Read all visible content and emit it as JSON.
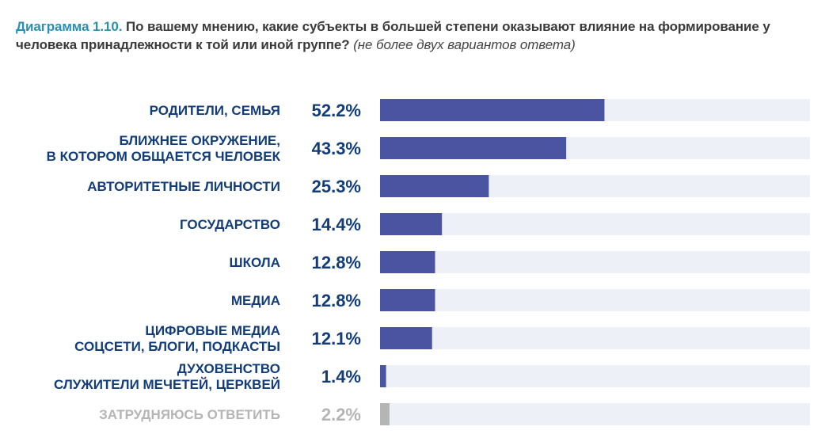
{
  "header": {
    "label": "Диаграмма 1.10.",
    "question": "По вашему мнению, какие субъекты в большей степени оказывают влияние на формирование у человека принадлежности к той или иной группе?",
    "note": "(не более двух вариантов ответа)"
  },
  "colors": {
    "bar": "#4a54a0",
    "bar_muted": "#b5b5b5",
    "track": "#eef0f8",
    "category_text": "#123d7a",
    "muted_text": "#b5b5b5",
    "header_label": "#2a8fb3"
  },
  "chart_data": {
    "type": "bar",
    "orientation": "horizontal",
    "categories": [
      [
        "РОДИТЕЛИ, СЕМЬЯ"
      ],
      [
        "БЛИЖНЕЕ ОКРУЖЕНИЕ,",
        "В КОТОРОМ ОБЩАЕТСЯ ЧЕЛОВЕК"
      ],
      [
        "АВТОРИТЕТНЫЕ ЛИЧНОСТИ"
      ],
      [
        "ГОСУДАРСТВО"
      ],
      [
        "ШКОЛА"
      ],
      [
        "МЕДИА"
      ],
      [
        "ЦИФРОВЫЕ МЕДИА",
        "СОЦСЕТИ, БЛОГИ, ПОДКАСТЫ"
      ],
      [
        "ДУХОВЕНСТВО",
        "СЛУЖИТЕЛИ МЕЧЕТЕЙ, ЦЕРКВЕЙ"
      ],
      [
        "ЗАТРУДНЯЮСЬ ОТВЕТИТЬ"
      ]
    ],
    "values": [
      52.2,
      43.3,
      25.3,
      14.4,
      12.8,
      12.8,
      12.1,
      1.4,
      2.2
    ],
    "value_labels": [
      "52.2%",
      "43.3%",
      "25.3%",
      "14.4%",
      "12.8%",
      "12.8%",
      "12.1%",
      "1.4%",
      "2.2%"
    ],
    "muted": [
      false,
      false,
      false,
      false,
      false,
      false,
      false,
      false,
      true
    ],
    "xlim": [
      0,
      100
    ],
    "unit": "%",
    "grid": false,
    "legend": "none"
  }
}
